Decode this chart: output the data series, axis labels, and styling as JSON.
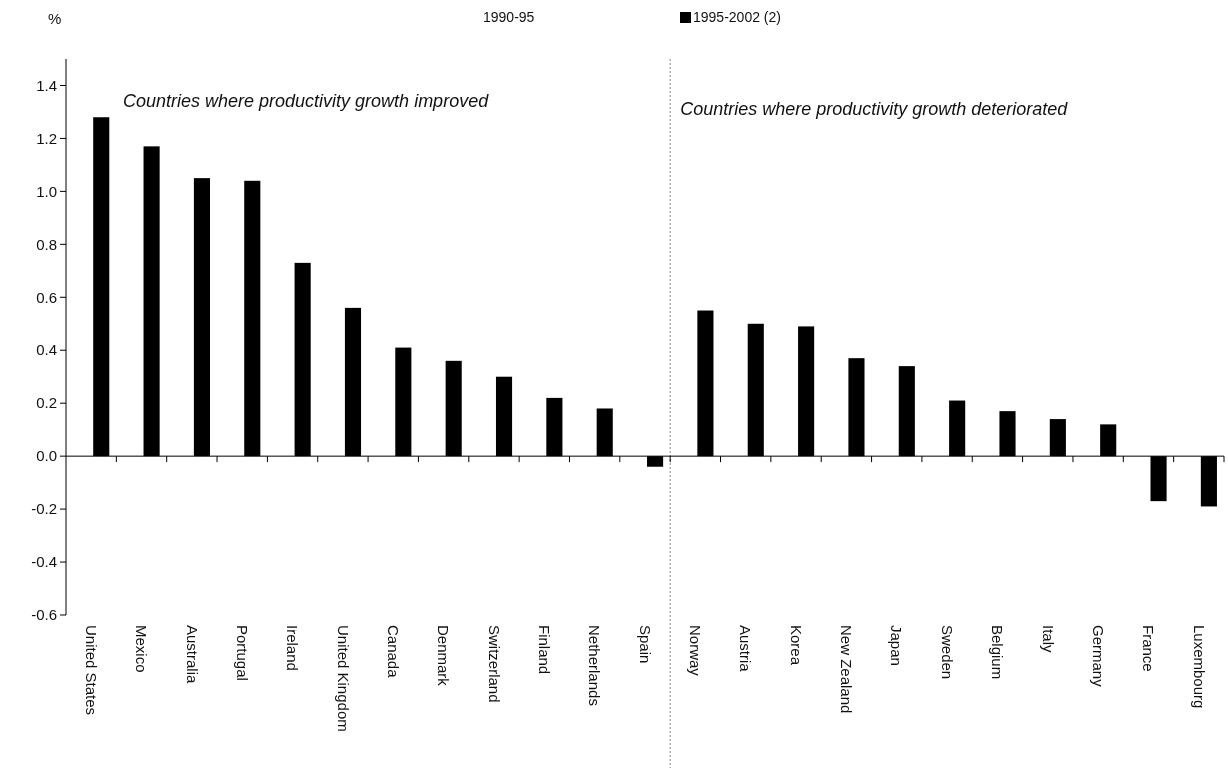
{
  "chart_data": {
    "type": "bar",
    "ylabel": "%",
    "categories": [
      "United States",
      "Mexico",
      "Australia",
      "Portugal",
      "Ireland",
      "United Kingdom",
      "Canada",
      "Denmark",
      "Switzerland",
      "Finland",
      "Netherlands",
      "Spain",
      "Norway",
      "Austria",
      "Korea",
      "New Zealand",
      "Japan",
      "Sweden",
      "Belgium",
      "Italy",
      "Germany",
      "France",
      "Luxembourg"
    ],
    "series": [
      {
        "name": "1990-95",
        "values": [
          null,
          null,
          null,
          null,
          null,
          null,
          null,
          null,
          null,
          null,
          null,
          null,
          null,
          null,
          null,
          null,
          null,
          null,
          null,
          null,
          null,
          null,
          null
        ]
      },
      {
        "name": "1995-2002 (2)",
        "color": "#000000",
        "values": [
          1.28,
          1.17,
          1.05,
          1.04,
          0.73,
          0.56,
          0.41,
          0.36,
          0.3,
          0.22,
          0.18,
          -0.04,
          0.55,
          0.5,
          0.49,
          0.37,
          0.34,
          0.21,
          0.17,
          0.14,
          0.12,
          -0.17,
          -0.19
        ]
      }
    ],
    "ylim": [
      -0.6,
      1.5
    ],
    "yticks": [
      {
        "value": -0.6,
        "label": "-0.6"
      },
      {
        "value": -0.4,
        "label": "-0.4"
      },
      {
        "value": -0.2,
        "label": "-0.2"
      },
      {
        "value": 0,
        "label": "0.0"
      },
      {
        "value": 0.2,
        "label": "0.2"
      },
      {
        "value": 0.4,
        "label": "0.4"
      },
      {
        "value": 0.6,
        "label": "0.6"
      },
      {
        "value": 0.8,
        "label": "0.8"
      },
      {
        "value": 1,
        "label": "1.0"
      },
      {
        "value": 1.2,
        "label": "1.2"
      },
      {
        "value": 1.4,
        "label": "1.4"
      }
    ],
    "grid": false,
    "legend": "top",
    "ref_lines": [
      {
        "axis": "x",
        "value": "Norway",
        "line_style": "dotted",
        "color": "#888888"
      }
    ],
    "annotations": [
      "Countries where productivity growth improved",
      "Countries where productivity growth deteriorated"
    ]
  }
}
